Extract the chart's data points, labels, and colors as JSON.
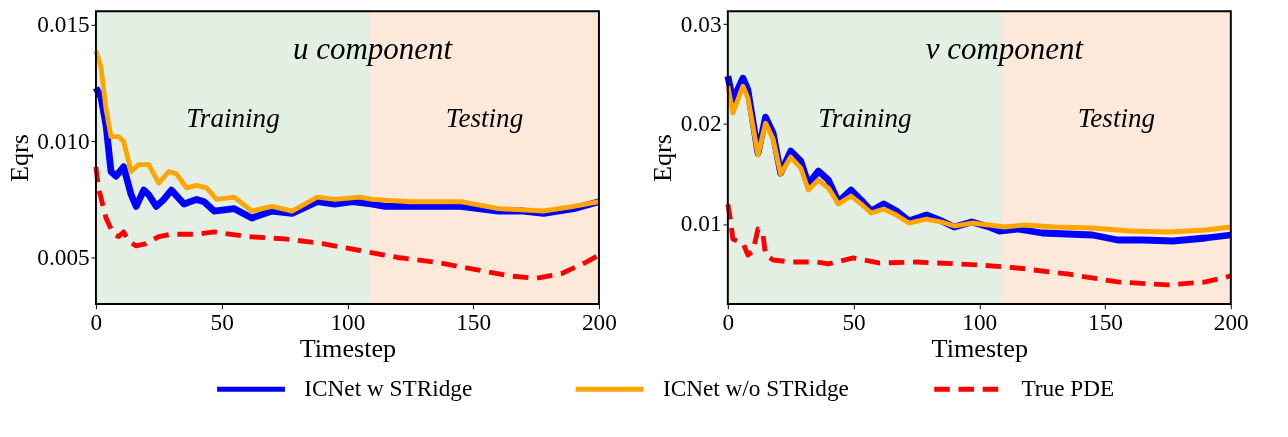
{
  "chart_data": [
    {
      "type": "line",
      "xlabel": "Timestep",
      "ylabel": "Eqrs",
      "annotations": [
        "u component"
      ],
      "xlim": [
        0,
        200
      ],
      "xticks": [
        0,
        50,
        100,
        150,
        200
      ],
      "ylim": [
        0.003,
        0.0156
      ],
      "yticks": [
        0.015,
        {
          "value": 0.01,
          "label": "0.010"
        },
        0.005
      ],
      "legend": "bottom",
      "bands": [
        {
          "axis": "x",
          "from": 0,
          "to": 109,
          "label": "Training",
          "color": "#e3efe3"
        },
        {
          "axis": "x",
          "from": 109,
          "to": 200,
          "label": "Testing",
          "color": "#fde9da"
        }
      ],
      "series": [
        {
          "name": "ICNet w STRidge",
          "color": "#0000ff",
          "line_style": "solid",
          "x": [
            0,
            2,
            4,
            6,
            8,
            11,
            14,
            16,
            19,
            21,
            24,
            27,
            30,
            35,
            40,
            43,
            47,
            55,
            62,
            70,
            78,
            88,
            95,
            102,
            110,
            115,
            125,
            135,
            145,
            160,
            170,
            178,
            190,
            200
          ],
          "values": [
            0.0123,
            0.0119,
            0.0107,
            0.0087,
            0.0085,
            0.0089,
            0.0077,
            0.0072,
            0.0079,
            0.0077,
            0.0072,
            0.0075,
            0.0079,
            0.0073,
            0.0075,
            0.0074,
            0.007,
            0.0071,
            0.0067,
            0.007,
            0.0069,
            0.0074,
            0.0073,
            0.0074,
            0.0073,
            0.0072,
            0.0072,
            0.0072,
            0.0072,
            0.007,
            0.007,
            0.0069,
            0.0071,
            0.0074
          ]
        },
        {
          "name": "ICNet w/o STRidge",
          "color": "#ffa500",
          "line_style": "solid",
          "x": [
            0,
            2,
            4,
            6,
            9,
            11,
            14,
            17,
            21,
            25,
            29,
            32,
            36,
            40,
            44,
            48,
            55,
            62,
            70,
            78,
            88,
            95,
            105,
            110,
            125,
            145,
            160,
            178,
            190,
            200
          ],
          "values": [
            0.0139,
            0.0132,
            0.0114,
            0.0102,
            0.0102,
            0.01,
            0.0087,
            0.009,
            0.009,
            0.0082,
            0.0087,
            0.0086,
            0.008,
            0.0081,
            0.008,
            0.0075,
            0.0076,
            0.007,
            0.0072,
            0.007,
            0.0076,
            0.0075,
            0.0076,
            0.0075,
            0.0074,
            0.0074,
            0.0071,
            0.007,
            0.0072,
            0.0074
          ]
        },
        {
          "name": "True PDE",
          "color": "#ff0000",
          "line_style": "dashed",
          "x": [
            0,
            1,
            4,
            7,
            9,
            11,
            13,
            16,
            20,
            25,
            30,
            40,
            47,
            60,
            75,
            90,
            105,
            120,
            135,
            150,
            165,
            175,
            185,
            195,
            200
          ],
          "values": [
            0.0089,
            0.008,
            0.0067,
            0.006,
            0.0059,
            0.0061,
            0.0057,
            0.0055,
            0.0056,
            0.0059,
            0.006,
            0.006,
            0.0061,
            0.0059,
            0.0058,
            0.0056,
            0.0053,
            0.005,
            0.0048,
            0.0045,
            0.0042,
            0.0041,
            0.0043,
            0.0048,
            0.0051
          ]
        }
      ]
    },
    {
      "type": "line",
      "xlabel": "Timestep",
      "ylabel": "Eqrs",
      "annotations": [
        "v component"
      ],
      "xlim": [
        0,
        200
      ],
      "xticks": [
        0,
        50,
        100,
        150,
        200
      ],
      "ylim": [
        0.002,
        0.0313
      ],
      "yticks": [
        0.01,
        0.02,
        0.03
      ],
      "bands": [
        {
          "axis": "x",
          "from": 0,
          "to": 109,
          "label": "Training",
          "color": "#e3efe3"
        },
        {
          "axis": "x",
          "from": 109,
          "to": 200,
          "label": "Testing",
          "color": "#fde9da"
        }
      ],
      "series": [
        {
          "name": "ICNet w STRidge",
          "color": "#0000ff",
          "line_style": "solid",
          "x": [
            0,
            2,
            6,
            8,
            12,
            15,
            18,
            21,
            25,
            29,
            32,
            36,
            40,
            44,
            49,
            53,
            57,
            62,
            67,
            72,
            79,
            85,
            90,
            97,
            104,
            108,
            115,
            125,
            135,
            145,
            155,
            165,
            177,
            190,
            200
          ],
          "values": [
            0.0248,
            0.0224,
            0.0246,
            0.0234,
            0.0171,
            0.0207,
            0.0191,
            0.0151,
            0.0173,
            0.0163,
            0.014,
            0.0153,
            0.0144,
            0.0122,
            0.0134,
            0.0124,
            0.0113,
            0.012,
            0.0113,
            0.0103,
            0.0109,
            0.0103,
            0.0097,
            0.0102,
            0.0097,
            0.0093,
            0.0095,
            0.0091,
            0.009,
            0.0089,
            0.0084,
            0.0084,
            0.0083,
            0.0086,
            0.0089
          ]
        },
        {
          "name": "ICNet w/o STRidge",
          "color": "#ffa500",
          "line_style": "solid",
          "x": [
            0,
            2,
            6,
            8,
            12,
            15,
            18,
            21,
            25,
            29,
            32,
            36,
            40,
            44,
            49,
            53,
            57,
            62,
            67,
            72,
            79,
            85,
            90,
            97,
            104,
            110,
            118,
            130,
            145,
            160,
            175,
            190,
            200
          ],
          "values": [
            0.0238,
            0.0211,
            0.0238,
            0.0226,
            0.0169,
            0.0201,
            0.0185,
            0.015,
            0.0167,
            0.0156,
            0.0134,
            0.0144,
            0.0136,
            0.012,
            0.0128,
            0.012,
            0.0111,
            0.0115,
            0.0109,
            0.0101,
            0.0105,
            0.0102,
            0.0098,
            0.0101,
            0.0099,
            0.0097,
            0.0099,
            0.0097,
            0.0096,
            0.0093,
            0.0092,
            0.0094,
            0.0097
          ]
        },
        {
          "name": "True PDE",
          "color": "#ff0000",
          "line_style": "dashed",
          "x": [
            0,
            1,
            2,
            4,
            6,
            8,
            10,
            12,
            14,
            15,
            18,
            25,
            35,
            40,
            50,
            60,
            75,
            100,
            115,
            135,
            155,
            175,
            190,
            200
          ],
          "values": [
            0.012,
            0.0105,
            0.0085,
            0.0083,
            0.0081,
            0.0069,
            0.0073,
            0.0095,
            0.0089,
            0.0069,
            0.0064,
            0.0062,
            0.0062,
            0.006,
            0.0066,
            0.0061,
            0.0062,
            0.0059,
            0.0056,
            0.005,
            0.0042,
            0.0039,
            0.0042,
            0.0048
          ]
        }
      ]
    }
  ]
}
